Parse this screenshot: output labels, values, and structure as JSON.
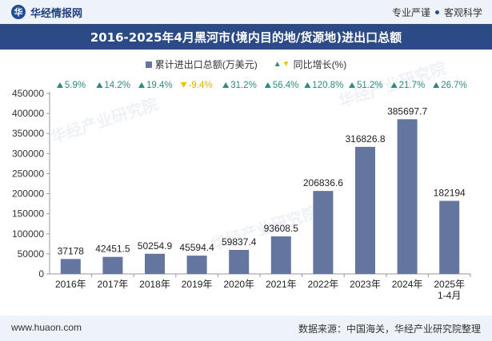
{
  "header": {
    "brand": "华经情报网",
    "logo_glyph": "华",
    "slogan_left": "专业严谨",
    "slogan_right": "客观科学"
  },
  "footer": {
    "site": "www.huaon.com",
    "source": "数据来源：中国海关，华经产业研究院整理"
  },
  "watermark": "华经产业研究院",
  "colors": {
    "bar": "#6476a0",
    "up": "#2e8b7e",
    "down": "#f0c200",
    "title_bg": "#2b4a86"
  },
  "chart_data": {
    "type": "bar",
    "title": "2016-2025年4月黑河市(境内目的地/货源地)进出口总额",
    "categories": [
      "2016年",
      "2017年",
      "2018年",
      "2019年",
      "2020年",
      "2021年",
      "2022年",
      "2023年",
      "2024年",
      "2025年\n1-4月"
    ],
    "series": [
      {
        "name": "累计进出口总额(万美元)",
        "values": [
          37178,
          42451.5,
          50254.9,
          45594.4,
          59837.4,
          93608.5,
          206836.6,
          316826.8,
          385697.7,
          182194
        ],
        "labels": [
          "37178",
          "42451.5",
          "50254.9",
          "45594.4",
          "59837.4",
          "93608.5",
          "206836.6",
          "316826.8",
          "385697.7",
          "182194"
        ]
      },
      {
        "name": "同比增长(%)",
        "values": [
          5.9,
          14.2,
          19.4,
          -9.4,
          31.2,
          56.4,
          120.8,
          51.2,
          21.7,
          26.7
        ],
        "labels": [
          "5.9%",
          "14.2%",
          "19.4%",
          "-9.4%",
          "31.2%",
          "56.4%",
          "120.8%",
          "51.2%",
          "21.7%",
          "26.7%"
        ]
      }
    ],
    "ylim": [
      0,
      450000
    ],
    "yticks": [
      "0",
      "50000",
      "100000",
      "150000",
      "200000",
      "250000",
      "300000",
      "350000",
      "400000",
      "450000"
    ],
    "legend_position": "top"
  }
}
